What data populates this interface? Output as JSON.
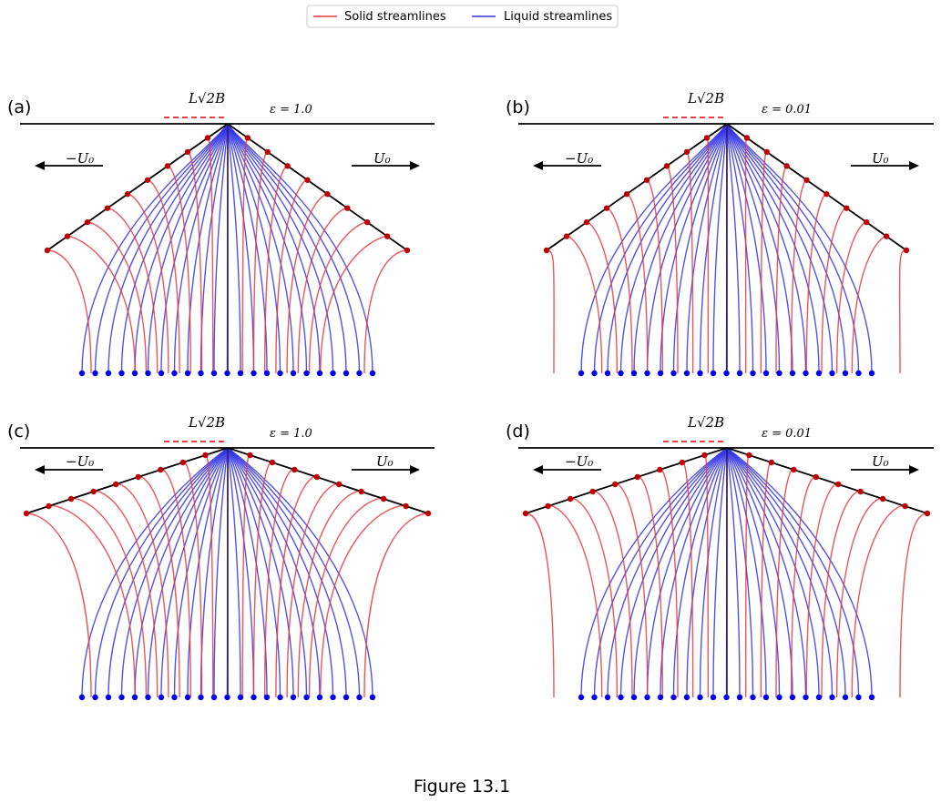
{
  "legend": {
    "solid": "Solid streamlines",
    "liquid": "Liquid streamlines"
  },
  "colors": {
    "solid": "#e8383b",
    "liquid": "#3434e6",
    "dot_solid": "#c00000",
    "dot_liquid": "#0000ee",
    "axis": "#000000"
  },
  "panels": [
    {
      "label": "(a)",
      "epsilon": "ε = 1.0",
      "width_label": "L√2B",
      "left_velocity": "−U₀",
      "right_velocity": "U₀"
    },
    {
      "label": "(b)",
      "epsilon": "ε = 0.01",
      "width_label": "L√2B",
      "left_velocity": "−U₀",
      "right_velocity": "U₀"
    },
    {
      "label": "(c)",
      "epsilon": "ε = 1.0",
      "width_label": "L√2B",
      "left_velocity": "−U₀",
      "right_velocity": "U₀"
    },
    {
      "label": "(d)",
      "epsilon": "ε = 0.01",
      "width_label": "L√2B",
      "left_velocity": "−U₀",
      "right_velocity": "U₀"
    }
  ],
  "caption": "Figure 13.1"
}
